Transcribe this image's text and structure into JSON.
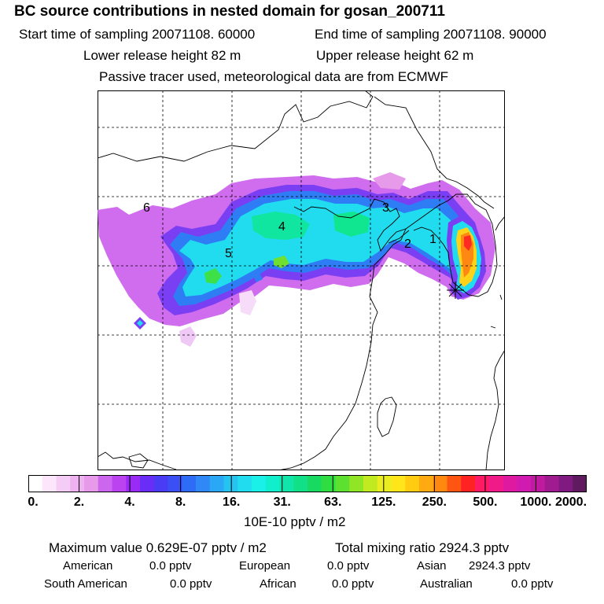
{
  "header": {
    "title": "BC  source contributions in nested domain for gosan_200711",
    "start_time": "Start time of sampling 20071108. 60000",
    "end_time": "End time of sampling 20071108. 90000",
    "lower_height": "Lower release height   82 m",
    "upper_height": "Upper release height   62 m",
    "tracer_note": "Passive tracer used, meteorological data are from ECMWF"
  },
  "map": {
    "region_labels": [
      "1",
      "2",
      "3",
      "4",
      "5",
      "6"
    ],
    "receptor": "gosan"
  },
  "colorbar": {
    "tick_labels": [
      "0.",
      "2.",
      "4.",
      "8.",
      "16.",
      "31.",
      "63.",
      "125.",
      "250.",
      "500.",
      "1000.",
      "2000."
    ],
    "colors": [
      "#ffffff",
      "#fbe6fb",
      "#f5ccf5",
      "#eeb2f0",
      "#e69ae9",
      "#cc66ee",
      "#bb44f0",
      "#9a2bf5",
      "#6a2cf7",
      "#4a3cf5",
      "#3a50f5",
      "#2f6cf5",
      "#2f88f5",
      "#2aa8f5",
      "#25c4f0",
      "#20dcee",
      "#1aefe8",
      "#10eecc",
      "#10e6aa",
      "#12e088",
      "#18da60",
      "#30dd40",
      "#5ee030",
      "#90e524",
      "#c2ea20",
      "#eaee20",
      "#ffe61a",
      "#ffcc12",
      "#ffaa10",
      "#ff8810",
      "#ff5512",
      "#ff2222",
      "#ff1a66",
      "#f01a88",
      "#e01aa0",
      "#d01ab0",
      "#c01aa0",
      "#a01a90",
      "#801a80",
      "#601a60"
    ],
    "units": "10E-10 pptv / m2"
  },
  "summary": {
    "maximum_value": "Maximum value  0.629E-07 pptv / m2",
    "total_mixing_ratio": "Total mixing ratio     2924.3 pptv",
    "american": {
      "label": "American",
      "value": "0.0 pptv"
    },
    "european": {
      "label": "European",
      "value": "0.0 pptv"
    },
    "asian": {
      "label": "Asian",
      "value": "2924.3 pptv"
    },
    "south_american": {
      "label": "South American",
      "value": "0.0 pptv"
    },
    "african": {
      "label": "African",
      "value": "0.0 pptv"
    },
    "australian": {
      "label": "Australian",
      "value": "0.0 pptv"
    }
  }
}
